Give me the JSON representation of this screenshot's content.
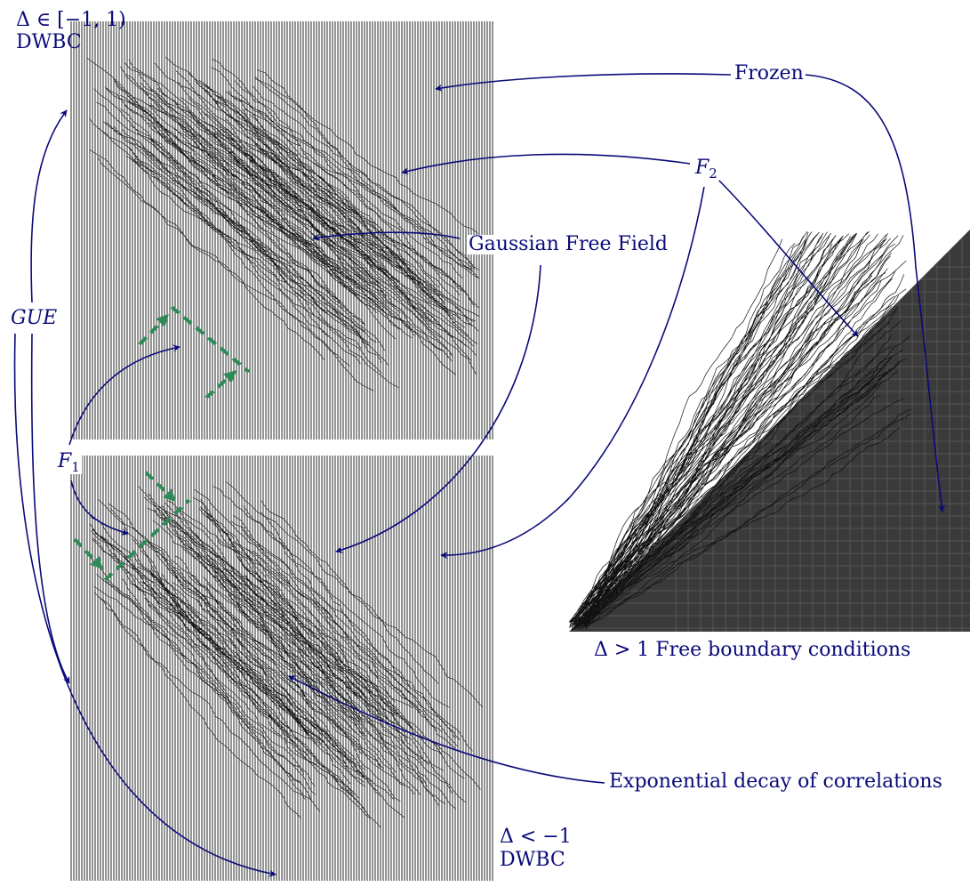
{
  "panels": {
    "top_left": {
      "line1": "Δ ∈ [−1, 1)",
      "line2": "DWBC"
    },
    "bottom_left": {
      "line1": "Δ < −1",
      "line2": "DWBC"
    },
    "right": {
      "caption": "Δ > 1 Free boundary conditions"
    }
  },
  "labels": {
    "frozen": "Frozen",
    "f2_base": "F",
    "f2_sub": "2",
    "gff": "Gaussian Free Field",
    "gue": "GUE",
    "f1_base": "F",
    "f1_sub": "1",
    "exp_decay": "Exponential decay of correlations"
  },
  "colors": {
    "label": "#0a0a7a",
    "arrow": "#0a0a7a",
    "dashed": "#2e8b57",
    "lines": "#111111"
  }
}
